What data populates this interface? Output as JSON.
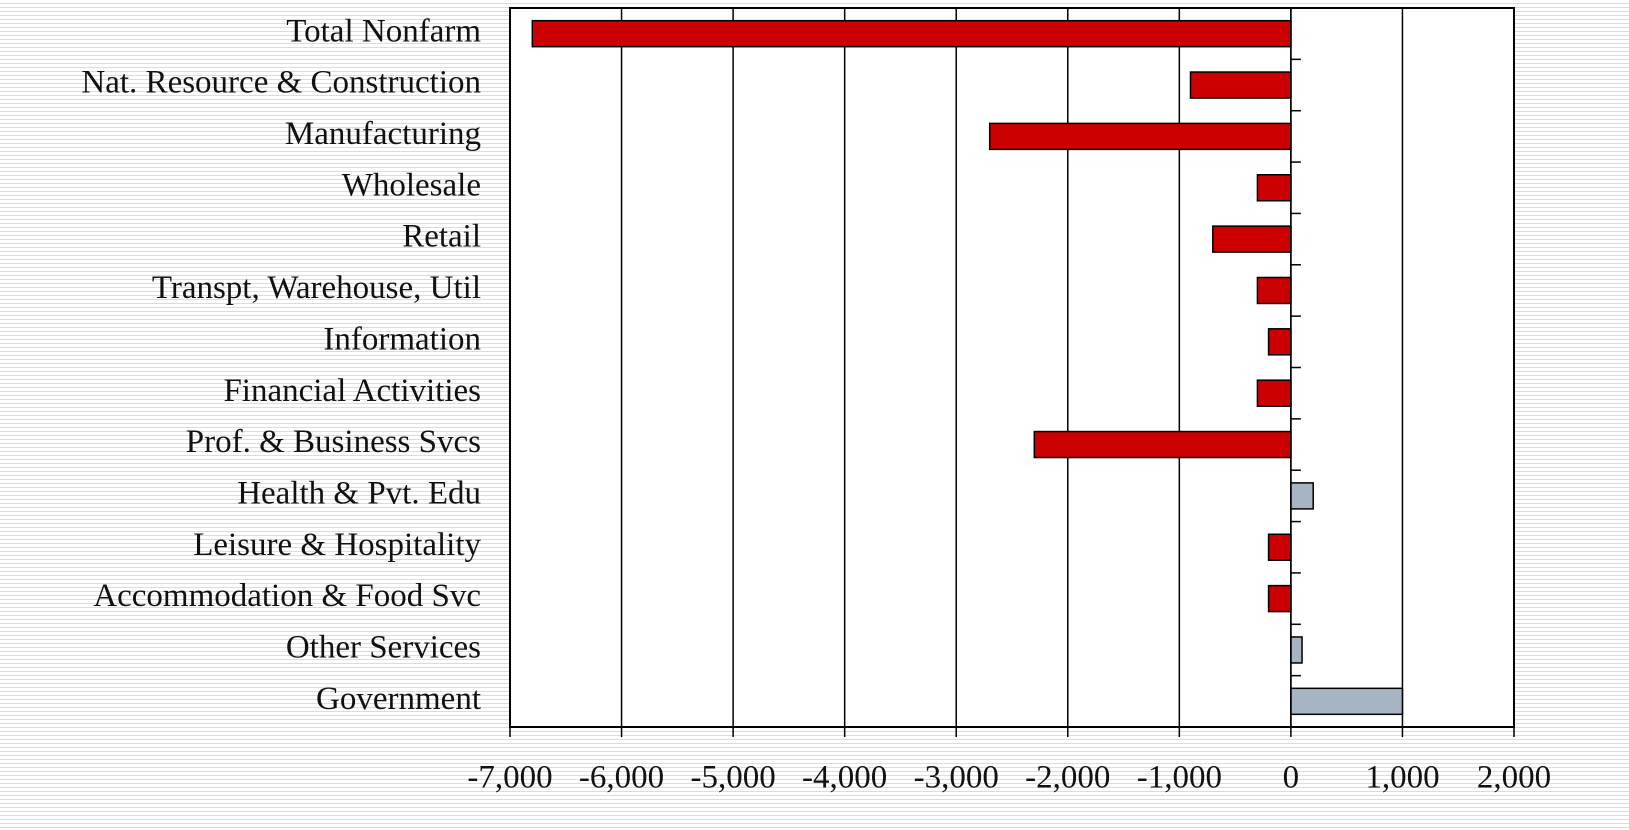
{
  "chart_data": {
    "type": "bar",
    "categories": [
      "Total Nonfarm",
      "Nat. Resource & Construction",
      "Manufacturing",
      "Wholesale",
      "Retail",
      "Transpt, Warehouse, Util",
      "Information",
      "Financial Activities",
      "Prof. & Business Svcs",
      "Health & Pvt. Edu",
      "Leisure & Hospitality",
      "Accommodation & Food Svc",
      "Other Services",
      "Government"
    ],
    "values": [
      -6800,
      -900,
      -2700,
      -300,
      -700,
      -300,
      -200,
      -300,
      -2300,
      200,
      -200,
      -200,
      100,
      1000
    ],
    "colors": [
      "#cc0000",
      "#cc0000",
      "#cc0000",
      "#cc0000",
      "#cc0000",
      "#cc0000",
      "#cc0000",
      "#cc0000",
      "#cc0000",
      "#a6b4c4",
      "#cc0000",
      "#cc0000",
      "#a6b4c4",
      "#a6b4c4"
    ],
    "xlim": [
      -7000,
      2000
    ],
    "xticks": [
      {
        "value": -7000,
        "label": "-7,000"
      },
      {
        "value": -6000,
        "label": "-6,000"
      },
      {
        "value": -5000,
        "label": "-5,000"
      },
      {
        "value": -4000,
        "label": "-4,000"
      },
      {
        "value": -3000,
        "label": "-3,000"
      },
      {
        "value": -2000,
        "label": "-2,000"
      },
      {
        "value": -1000,
        "label": "-1,000"
      },
      0,
      {
        "value": 1000,
        "label": "1,000"
      },
      {
        "value": 2000,
        "label": "2,000"
      }
    ],
    "grid": true
  }
}
